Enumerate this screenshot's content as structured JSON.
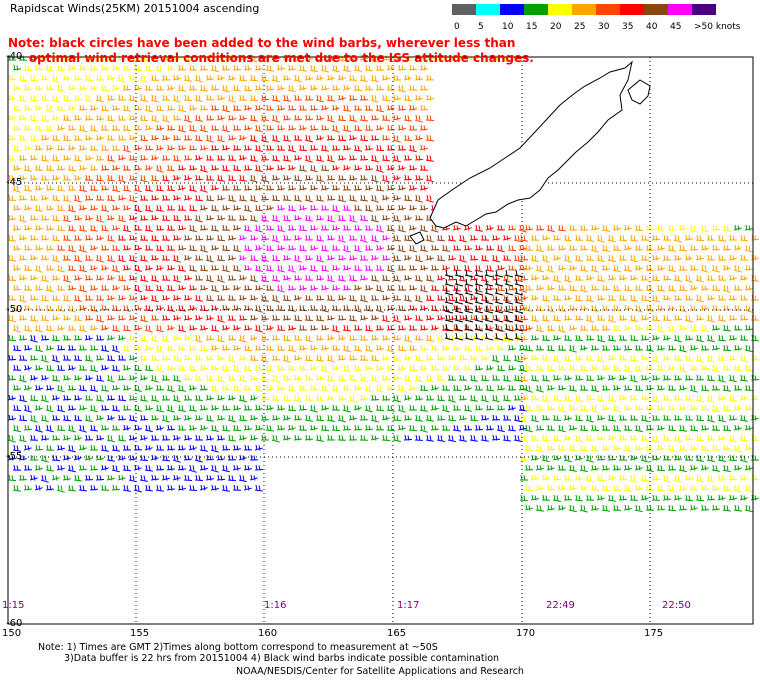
{
  "title": "Rapidscat Winds(25KM) 20151004 ascending",
  "note": {
    "line1": "Note: black circles have been added to the wind barbs, wherever less than",
    "line2": "optimal wind retrieval conditions are met due to the ISS attitude changes."
  },
  "scale": {
    "labels": [
      "0",
      "5",
      "10",
      "15",
      "20",
      "25",
      "30",
      "35",
      "40",
      "45",
      ">50 knots"
    ],
    "colors": [
      "#606060",
      "#00ffff",
      "#0000ff",
      "#00a000",
      "#ffff00",
      "#ffa500",
      "#ff4500",
      "#ff0000",
      "#8b4513",
      "#ff00ff",
      "#4b0082"
    ]
  },
  "axes": {
    "lat_labels": [
      "-40",
      "-45",
      "-50",
      "-55",
      "-60"
    ],
    "lon_labels": [
      "150",
      "155",
      "160",
      "165",
      "170",
      "175"
    ]
  },
  "time_labels": [
    "1:15",
    "1:16",
    "1:17",
    "22:49",
    "22:50"
  ],
  "footnotes": {
    "line1": "Note: 1) Times are GMT 2)Times along bottom correspond to measurement at ~50S",
    "line2": "3)Data buffer is 22 hrs from 20151004 4) Black wind barbs indicate possible contamination"
  },
  "credit": "NOAA/NESDIS/Center for Satellite Applications and Research",
  "map_layers": [
    "wind-barbs",
    "new-zealand-coastline",
    "lat-lon-grid"
  ]
}
